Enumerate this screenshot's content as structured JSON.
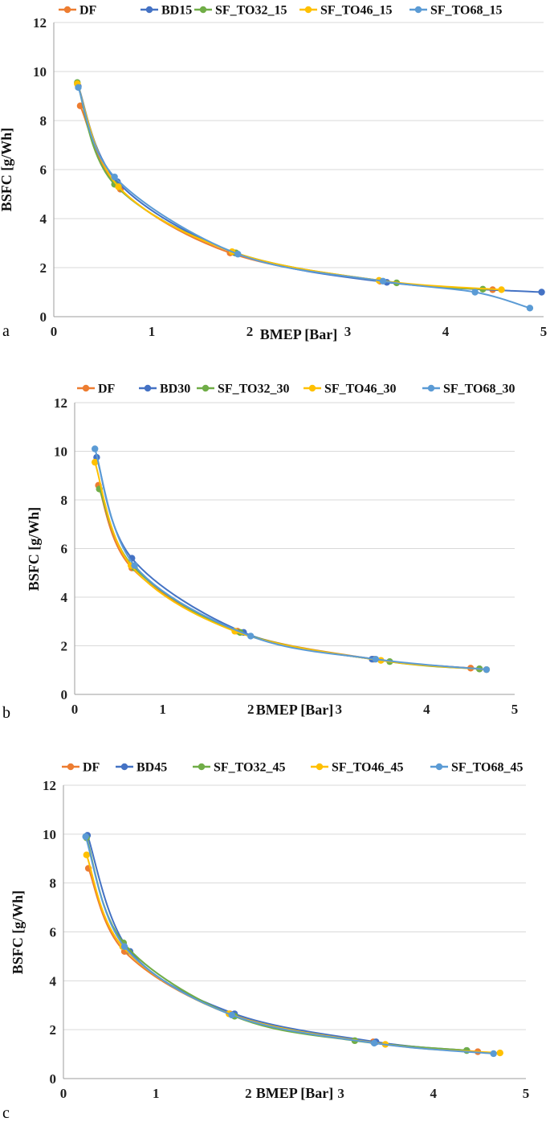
{
  "colors": {
    "DF": "#ed7d31",
    "BD": "#4472c4",
    "SF_TO32": "#70ad47",
    "SF_TO46": "#ffc000",
    "SF_TO68": "#5b9bd5"
  },
  "chart_data": [
    {
      "type": "line",
      "panel_label": "a",
      "xlabel": "BMEP [Bar]",
      "ylabel": "BSFC [g/Wh]",
      "xlim": [
        0,
        5
      ],
      "ylim": [
        0,
        12
      ],
      "xticks": [
        "0",
        "1",
        "2",
        "3",
        "4",
        "5"
      ],
      "yticks": [
        "0",
        "2",
        "4",
        "6",
        "8",
        "10",
        "12"
      ],
      "grid": true,
      "legend_position": "top",
      "series": [
        {
          "name": "DF",
          "color": "#ed7d31",
          "x": [
            0.27,
            0.68,
            1.8,
            3.33,
            4.48
          ],
          "y": [
            8.6,
            5.2,
            2.6,
            1.45,
            1.1
          ]
        },
        {
          "name": "BD15",
          "color": "#4472c4",
          "x": [
            0.25,
            0.65,
            1.85,
            3.4,
            4.98
          ],
          "y": [
            9.4,
            5.5,
            2.6,
            1.4,
            1.0
          ]
        },
        {
          "name": "SF_TO32_15",
          "color": "#70ad47",
          "x": [
            0.24,
            0.62,
            1.86,
            3.5,
            4.38
          ],
          "y": [
            9.55,
            5.4,
            2.6,
            1.38,
            1.12
          ]
        },
        {
          "name": "SF_TO46_15",
          "color": "#ffc000",
          "x": [
            0.24,
            0.66,
            1.82,
            3.32,
            4.57
          ],
          "y": [
            9.5,
            5.3,
            2.65,
            1.48,
            1.1
          ]
        },
        {
          "name": "SF_TO68_15",
          "color": "#5b9bd5",
          "x": [
            0.25,
            0.62,
            1.88,
            3.36,
            4.3,
            4.86
          ],
          "y": [
            9.35,
            5.7,
            2.55,
            1.45,
            1.0,
            0.35
          ]
        }
      ]
    },
    {
      "type": "line",
      "panel_label": "b",
      "xlabel": "BMEP [Bar]",
      "ylabel": "BSFC [g/Wh]",
      "xlim": [
        0,
        5
      ],
      "ylim": [
        0,
        12
      ],
      "xticks": [
        "0",
        "1",
        "2",
        "3",
        "4",
        "5"
      ],
      "yticks": [
        "0",
        "2",
        "4",
        "6",
        "8",
        "10",
        "12"
      ],
      "grid": true,
      "legend_position": "top",
      "series": [
        {
          "name": "DF",
          "color": "#ed7d31",
          "x": [
            0.27,
            0.65,
            1.85,
            3.4,
            4.5
          ],
          "y": [
            8.6,
            5.2,
            2.6,
            1.45,
            1.08
          ]
        },
        {
          "name": "BD30",
          "color": "#4472c4",
          "x": [
            0.25,
            0.65,
            1.92,
            3.38,
            4.6
          ],
          "y": [
            9.75,
            5.6,
            2.55,
            1.45,
            1.05
          ]
        },
        {
          "name": "SF_TO32_30",
          "color": "#70ad47",
          "x": [
            0.28,
            0.68,
            1.88,
            3.58,
            4.6
          ],
          "y": [
            8.45,
            5.2,
            2.55,
            1.35,
            1.05
          ]
        },
        {
          "name": "SF_TO46_30",
          "color": "#ffc000",
          "x": [
            0.23,
            0.64,
            1.82,
            3.48,
            4.68
          ],
          "y": [
            9.55,
            5.3,
            2.6,
            1.4,
            1.02
          ]
        },
        {
          "name": "SF_TO68_30",
          "color": "#5b9bd5",
          "x": [
            0.23,
            0.68,
            2.0,
            3.42,
            4.68
          ],
          "y": [
            10.1,
            5.3,
            2.4,
            1.45,
            1.02
          ]
        }
      ]
    },
    {
      "type": "line",
      "panel_label": "c",
      "xlabel": "BMEP [Bar]",
      "ylabel": "BSFC [g/Wh]",
      "xlim": [
        0,
        5
      ],
      "ylim": [
        0,
        12
      ],
      "xticks": [
        "0",
        "1",
        "2",
        "3",
        "4",
        "5"
      ],
      "yticks": [
        "0",
        "2",
        "4",
        "6",
        "8",
        "10",
        "12"
      ],
      "grid": true,
      "legend_position": "top",
      "series": [
        {
          "name": "DF",
          "color": "#ed7d31",
          "x": [
            0.27,
            0.66,
            1.8,
            3.35,
            4.48
          ],
          "y": [
            8.6,
            5.2,
            2.65,
            1.5,
            1.1
          ]
        },
        {
          "name": "BD45",
          "color": "#4472c4",
          "x": [
            0.26,
            0.72,
            1.85,
            3.38,
            4.36
          ],
          "y": [
            9.95,
            5.2,
            2.65,
            1.5,
            1.15
          ]
        },
        {
          "name": "SF_TO32_45",
          "color": "#70ad47",
          "x": [
            0.25,
            0.65,
            1.85,
            3.15,
            4.36
          ],
          "y": [
            9.85,
            5.55,
            2.55,
            1.55,
            1.15
          ]
        },
        {
          "name": "SF_TO46_45",
          "color": "#ffc000",
          "x": [
            0.25,
            0.64,
            1.79,
            3.48,
            4.72
          ],
          "y": [
            9.15,
            5.4,
            2.65,
            1.4,
            1.05
          ]
        },
        {
          "name": "SF_TO68_45",
          "color": "#5b9bd5",
          "x": [
            0.24,
            0.66,
            1.82,
            3.36,
            4.65
          ],
          "y": [
            9.9,
            5.4,
            2.6,
            1.45,
            1.02
          ]
        }
      ]
    }
  ]
}
